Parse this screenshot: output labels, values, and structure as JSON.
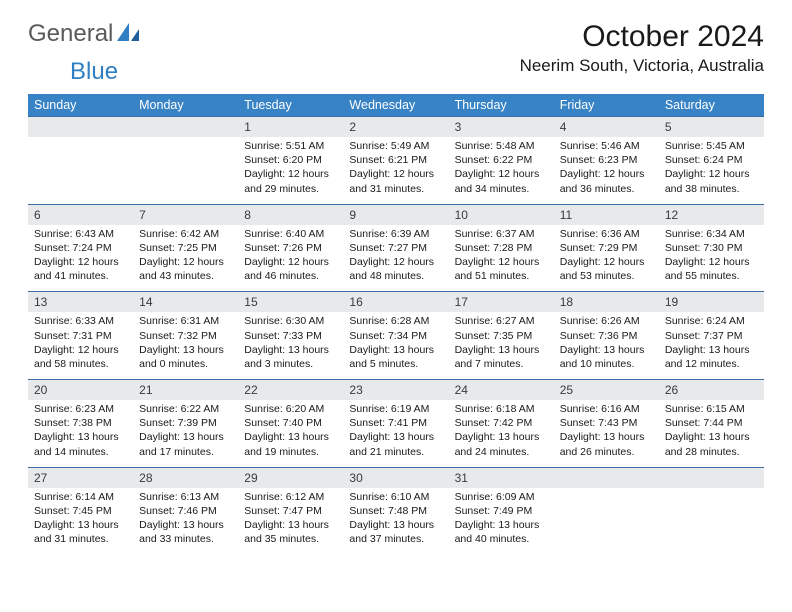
{
  "brand": {
    "general": "General",
    "blue": "Blue"
  },
  "title": "October 2024",
  "location": "Neerim South, Victoria, Australia",
  "colors": {
    "header_bg": "#3783c5",
    "daynum_bg": "#e7e9eb",
    "divider": "#3a6ea5",
    "text": "#1a1a1a",
    "brand_gray": "#5a5a5a",
    "brand_blue": "#2f7fc2"
  },
  "days_of_week": [
    "Sunday",
    "Monday",
    "Tuesday",
    "Wednesday",
    "Thursday",
    "Friday",
    "Saturday"
  ],
  "weeks": [
    {
      "nums": [
        "",
        "",
        "1",
        "2",
        "3",
        "4",
        "5"
      ],
      "cells": [
        null,
        null,
        {
          "sr": "Sunrise: 5:51 AM",
          "ss": "Sunset: 6:20 PM",
          "d1": "Daylight: 12 hours",
          "d2": "and 29 minutes."
        },
        {
          "sr": "Sunrise: 5:49 AM",
          "ss": "Sunset: 6:21 PM",
          "d1": "Daylight: 12 hours",
          "d2": "and 31 minutes."
        },
        {
          "sr": "Sunrise: 5:48 AM",
          "ss": "Sunset: 6:22 PM",
          "d1": "Daylight: 12 hours",
          "d2": "and 34 minutes."
        },
        {
          "sr": "Sunrise: 5:46 AM",
          "ss": "Sunset: 6:23 PM",
          "d1": "Daylight: 12 hours",
          "d2": "and 36 minutes."
        },
        {
          "sr": "Sunrise: 5:45 AM",
          "ss": "Sunset: 6:24 PM",
          "d1": "Daylight: 12 hours",
          "d2": "and 38 minutes."
        }
      ]
    },
    {
      "nums": [
        "6",
        "7",
        "8",
        "9",
        "10",
        "11",
        "12"
      ],
      "cells": [
        {
          "sr": "Sunrise: 6:43 AM",
          "ss": "Sunset: 7:24 PM",
          "d1": "Daylight: 12 hours",
          "d2": "and 41 minutes."
        },
        {
          "sr": "Sunrise: 6:42 AM",
          "ss": "Sunset: 7:25 PM",
          "d1": "Daylight: 12 hours",
          "d2": "and 43 minutes."
        },
        {
          "sr": "Sunrise: 6:40 AM",
          "ss": "Sunset: 7:26 PM",
          "d1": "Daylight: 12 hours",
          "d2": "and 46 minutes."
        },
        {
          "sr": "Sunrise: 6:39 AM",
          "ss": "Sunset: 7:27 PM",
          "d1": "Daylight: 12 hours",
          "d2": "and 48 minutes."
        },
        {
          "sr": "Sunrise: 6:37 AM",
          "ss": "Sunset: 7:28 PM",
          "d1": "Daylight: 12 hours",
          "d2": "and 51 minutes."
        },
        {
          "sr": "Sunrise: 6:36 AM",
          "ss": "Sunset: 7:29 PM",
          "d1": "Daylight: 12 hours",
          "d2": "and 53 minutes."
        },
        {
          "sr": "Sunrise: 6:34 AM",
          "ss": "Sunset: 7:30 PM",
          "d1": "Daylight: 12 hours",
          "d2": "and 55 minutes."
        }
      ]
    },
    {
      "nums": [
        "13",
        "14",
        "15",
        "16",
        "17",
        "18",
        "19"
      ],
      "cells": [
        {
          "sr": "Sunrise: 6:33 AM",
          "ss": "Sunset: 7:31 PM",
          "d1": "Daylight: 12 hours",
          "d2": "and 58 minutes."
        },
        {
          "sr": "Sunrise: 6:31 AM",
          "ss": "Sunset: 7:32 PM",
          "d1": "Daylight: 13 hours",
          "d2": "and 0 minutes."
        },
        {
          "sr": "Sunrise: 6:30 AM",
          "ss": "Sunset: 7:33 PM",
          "d1": "Daylight: 13 hours",
          "d2": "and 3 minutes."
        },
        {
          "sr": "Sunrise: 6:28 AM",
          "ss": "Sunset: 7:34 PM",
          "d1": "Daylight: 13 hours",
          "d2": "and 5 minutes."
        },
        {
          "sr": "Sunrise: 6:27 AM",
          "ss": "Sunset: 7:35 PM",
          "d1": "Daylight: 13 hours",
          "d2": "and 7 minutes."
        },
        {
          "sr": "Sunrise: 6:26 AM",
          "ss": "Sunset: 7:36 PM",
          "d1": "Daylight: 13 hours",
          "d2": "and 10 minutes."
        },
        {
          "sr": "Sunrise: 6:24 AM",
          "ss": "Sunset: 7:37 PM",
          "d1": "Daylight: 13 hours",
          "d2": "and 12 minutes."
        }
      ]
    },
    {
      "nums": [
        "20",
        "21",
        "22",
        "23",
        "24",
        "25",
        "26"
      ],
      "cells": [
        {
          "sr": "Sunrise: 6:23 AM",
          "ss": "Sunset: 7:38 PM",
          "d1": "Daylight: 13 hours",
          "d2": "and 14 minutes."
        },
        {
          "sr": "Sunrise: 6:22 AM",
          "ss": "Sunset: 7:39 PM",
          "d1": "Daylight: 13 hours",
          "d2": "and 17 minutes."
        },
        {
          "sr": "Sunrise: 6:20 AM",
          "ss": "Sunset: 7:40 PM",
          "d1": "Daylight: 13 hours",
          "d2": "and 19 minutes."
        },
        {
          "sr": "Sunrise: 6:19 AM",
          "ss": "Sunset: 7:41 PM",
          "d1": "Daylight: 13 hours",
          "d2": "and 21 minutes."
        },
        {
          "sr": "Sunrise: 6:18 AM",
          "ss": "Sunset: 7:42 PM",
          "d1": "Daylight: 13 hours",
          "d2": "and 24 minutes."
        },
        {
          "sr": "Sunrise: 6:16 AM",
          "ss": "Sunset: 7:43 PM",
          "d1": "Daylight: 13 hours",
          "d2": "and 26 minutes."
        },
        {
          "sr": "Sunrise: 6:15 AM",
          "ss": "Sunset: 7:44 PM",
          "d1": "Daylight: 13 hours",
          "d2": "and 28 minutes."
        }
      ]
    },
    {
      "nums": [
        "27",
        "28",
        "29",
        "30",
        "31",
        "",
        ""
      ],
      "cells": [
        {
          "sr": "Sunrise: 6:14 AM",
          "ss": "Sunset: 7:45 PM",
          "d1": "Daylight: 13 hours",
          "d2": "and 31 minutes."
        },
        {
          "sr": "Sunrise: 6:13 AM",
          "ss": "Sunset: 7:46 PM",
          "d1": "Daylight: 13 hours",
          "d2": "and 33 minutes."
        },
        {
          "sr": "Sunrise: 6:12 AM",
          "ss": "Sunset: 7:47 PM",
          "d1": "Daylight: 13 hours",
          "d2": "and 35 minutes."
        },
        {
          "sr": "Sunrise: 6:10 AM",
          "ss": "Sunset: 7:48 PM",
          "d1": "Daylight: 13 hours",
          "d2": "and 37 minutes."
        },
        {
          "sr": "Sunrise: 6:09 AM",
          "ss": "Sunset: 7:49 PM",
          "d1": "Daylight: 13 hours",
          "d2": "and 40 minutes."
        },
        null,
        null
      ]
    }
  ]
}
